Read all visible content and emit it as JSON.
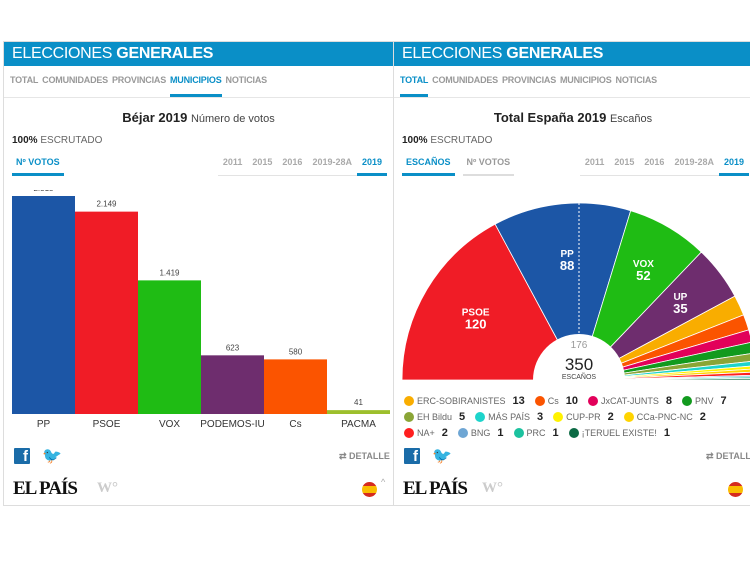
{
  "left": {
    "header": {
      "light": "ELECCIONES ",
      "bold": "GENERALES"
    },
    "nav": [
      {
        "label": "TOTAL",
        "active": false
      },
      {
        "label": "COMUNIDADES",
        "active": false
      },
      {
        "label": "PROVINCIAS",
        "active": false
      },
      {
        "label": "MUNICIPIOS",
        "active": true
      },
      {
        "label": "NOTICIAS",
        "active": false
      }
    ],
    "title": {
      "place": "Béjar 2019",
      "subtitle": "Número de votos"
    },
    "scrutiny": {
      "pct": "100%",
      "label": " ESCRUTADO"
    },
    "metric_tabs": [
      {
        "label": "Nº VOTOS",
        "active": true
      }
    ],
    "year_tabs": [
      {
        "label": "2011",
        "active": false
      },
      {
        "label": "2015",
        "active": false
      },
      {
        "label": "2016",
        "active": false
      },
      {
        "label": "2019-28A",
        "active": false
      },
      {
        "label": "2019",
        "active": true
      }
    ],
    "detail": "DETALLE",
    "logo": "EL PAÍS"
  },
  "right": {
    "header": {
      "light": "ELECCIONES ",
      "bold": "GENERALES"
    },
    "nav": [
      {
        "label": "TOTAL",
        "active": true
      },
      {
        "label": "COMUNIDADES",
        "active": false
      },
      {
        "label": "PROVINCIAS",
        "active": false
      },
      {
        "label": "MUNICIPIOS",
        "active": false
      },
      {
        "label": "NOTICIAS",
        "active": false
      }
    ],
    "title": {
      "place": "Total España 2019",
      "subtitle": "Escaños"
    },
    "scrutiny": {
      "pct": "100%",
      "label": " ESCRUTADO"
    },
    "metric_tabs": [
      {
        "label": "ESCAÑOS",
        "active": true
      },
      {
        "label": "Nº VOTOS",
        "active": false
      }
    ],
    "year_tabs": [
      {
        "label": "2011",
        "active": false
      },
      {
        "label": "2015",
        "active": false
      },
      {
        "label": "2016",
        "active": false
      },
      {
        "label": "2019-28A",
        "active": false
      },
      {
        "label": "2019",
        "active": true
      }
    ],
    "detail": "DETALLE",
    "logo": "EL PAÍS"
  },
  "chart_data": [
    {
      "type": "bar",
      "title": "Béjar 2019",
      "ylabel": "Número de votos",
      "categories": [
        "PP",
        "PSOE",
        "VOX",
        "PODEMOS-IU",
        "Cs",
        "PACMA"
      ],
      "values": [
        2315,
        2149,
        1419,
        623,
        580,
        41
      ],
      "value_labels": [
        "2.315",
        "2.149",
        "1.419",
        "623",
        "580",
        "41"
      ],
      "colors": [
        "#1c56a6",
        "#f01c26",
        "#1fbc14",
        "#6e2d6e",
        "#fb5400",
        "#9dbf2c"
      ]
    },
    {
      "type": "pie",
      "variant": "hemicycle",
      "title": "Total España 2019",
      "ylabel": "Escaños",
      "total": 350,
      "total_label": "350",
      "total_caption": "ESCAÑOS",
      "majority": 176,
      "majority_label": "176",
      "series": [
        {
          "name": "PSOE",
          "value": 120,
          "color": "#f01c26",
          "labeled": true
        },
        {
          "name": "PP",
          "value": 88,
          "color": "#1c56a6",
          "labeled": true
        },
        {
          "name": "VOX",
          "value": 52,
          "color": "#1fbc14",
          "labeled": true
        },
        {
          "name": "UP",
          "value": 35,
          "color": "#6e2d6e",
          "labeled": true
        },
        {
          "name": "ERC-SOBIRANISTES",
          "value": 13,
          "color": "#f9ad00",
          "labeled": false
        },
        {
          "name": "Cs",
          "value": 10,
          "color": "#fb5400",
          "labeled": false
        },
        {
          "name": "JxCAT-JUNTS",
          "value": 8,
          "color": "#e2005a",
          "labeled": false
        },
        {
          "name": "PNV",
          "value": 7,
          "color": "#129a1e",
          "labeled": false
        },
        {
          "name": "EH Bildu",
          "value": 5,
          "color": "#8aa536",
          "labeled": false
        },
        {
          "name": "MÁS PAÍS",
          "value": 3,
          "color": "#1dd4cb",
          "labeled": false
        },
        {
          "name": "CUP-PR",
          "value": 2,
          "color": "#fff200",
          "labeled": false
        },
        {
          "name": "CCa-PNC-NC",
          "value": 2,
          "color": "#ffd400",
          "labeled": false
        },
        {
          "name": "NA+",
          "value": 2,
          "color": "#ff1f1f",
          "labeled": false
        },
        {
          "name": "BNG",
          "value": 1,
          "color": "#6ea6d4",
          "labeled": false
        },
        {
          "name": "PRC",
          "value": 1,
          "color": "#1cc29f",
          "labeled": false
        },
        {
          "name": "¡TERUEL EXISTE!",
          "value": 1,
          "color": "#0c6a44",
          "labeled": false
        }
      ]
    }
  ]
}
